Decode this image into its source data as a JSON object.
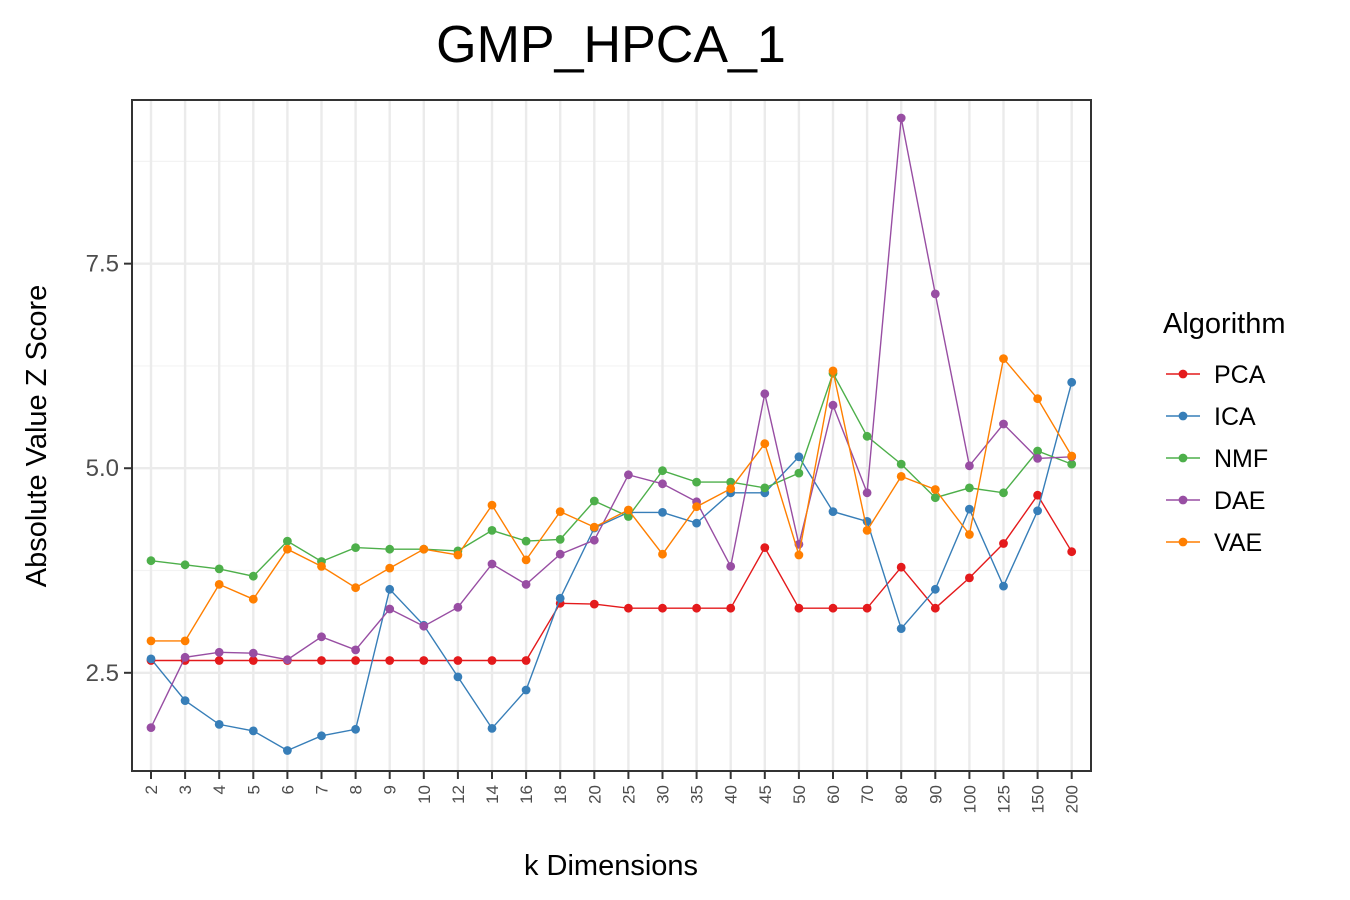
{
  "chart_data": {
    "type": "line",
    "title": "GMP_HPCA_1",
    "xlabel": "k Dimensions",
    "ylabel": "Absolute Value Z Score",
    "yticks": [
      2.5,
      5.0,
      7.5
    ],
    "ytick_labels": [
      "2.5",
      "5.0",
      "7.5"
    ],
    "ylim": [
      1.3,
      9.5
    ],
    "categories": [
      "2",
      "3",
      "4",
      "5",
      "6",
      "7",
      "8",
      "9",
      "10",
      "12",
      "14",
      "16",
      "18",
      "20",
      "25",
      "30",
      "35",
      "40",
      "45",
      "50",
      "60",
      "70",
      "80",
      "90",
      "100",
      "125",
      "150",
      "200"
    ],
    "grid": true,
    "legend": {
      "title": "Algorithm",
      "placement": "right"
    },
    "series": [
      {
        "name": "PCA",
        "color": "#E41A1C",
        "values": [
          2.65,
          2.65,
          2.65,
          2.65,
          2.65,
          2.65,
          2.65,
          2.65,
          2.65,
          2.65,
          2.65,
          2.65,
          3.35,
          3.34,
          3.29,
          3.29,
          3.29,
          3.29,
          4.03,
          3.29,
          3.29,
          3.29,
          3.79,
          3.29,
          3.66,
          4.08,
          4.67,
          3.98
        ]
      },
      {
        "name": "ICA",
        "color": "#377EB8",
        "values": [
          2.67,
          2.16,
          1.87,
          1.79,
          1.55,
          1.73,
          1.81,
          3.52,
          3.08,
          2.45,
          1.82,
          2.29,
          3.41,
          4.27,
          4.46,
          4.46,
          4.33,
          4.7,
          4.7,
          5.14,
          4.47,
          4.35,
          3.04,
          3.52,
          4.5,
          3.56,
          4.48,
          6.05
        ]
      },
      {
        "name": "NMF",
        "color": "#4DAF4A",
        "values": [
          3.87,
          3.82,
          3.77,
          3.68,
          4.11,
          3.86,
          4.03,
          4.01,
          4.01,
          3.99,
          4.24,
          4.11,
          4.13,
          4.6,
          4.41,
          4.97,
          4.83,
          4.83,
          4.76,
          4.94,
          6.16,
          5.39,
          5.05,
          4.64,
          4.76,
          4.7,
          5.21,
          5.05
        ]
      },
      {
        "name": "DAE",
        "color": "#984EA3",
        "values": [
          1.83,
          2.69,
          2.75,
          2.74,
          2.66,
          2.94,
          2.78,
          3.28,
          3.07,
          3.3,
          3.83,
          3.58,
          3.95,
          4.12,
          4.92,
          4.81,
          4.59,
          3.8,
          5.91,
          4.07,
          5.77,
          4.7,
          9.28,
          7.13,
          5.03,
          5.54,
          5.12,
          5.14
        ]
      },
      {
        "name": "VAE",
        "color": "#FF7F00",
        "values": [
          2.89,
          2.89,
          3.58,
          3.4,
          4.01,
          3.8,
          3.54,
          3.78,
          4.01,
          3.94,
          4.55,
          3.88,
          4.47,
          4.28,
          4.49,
          3.95,
          4.53,
          4.75,
          5.3,
          3.94,
          6.19,
          4.24,
          4.9,
          4.74,
          4.19,
          6.34,
          5.85,
          5.15
        ]
      }
    ]
  }
}
